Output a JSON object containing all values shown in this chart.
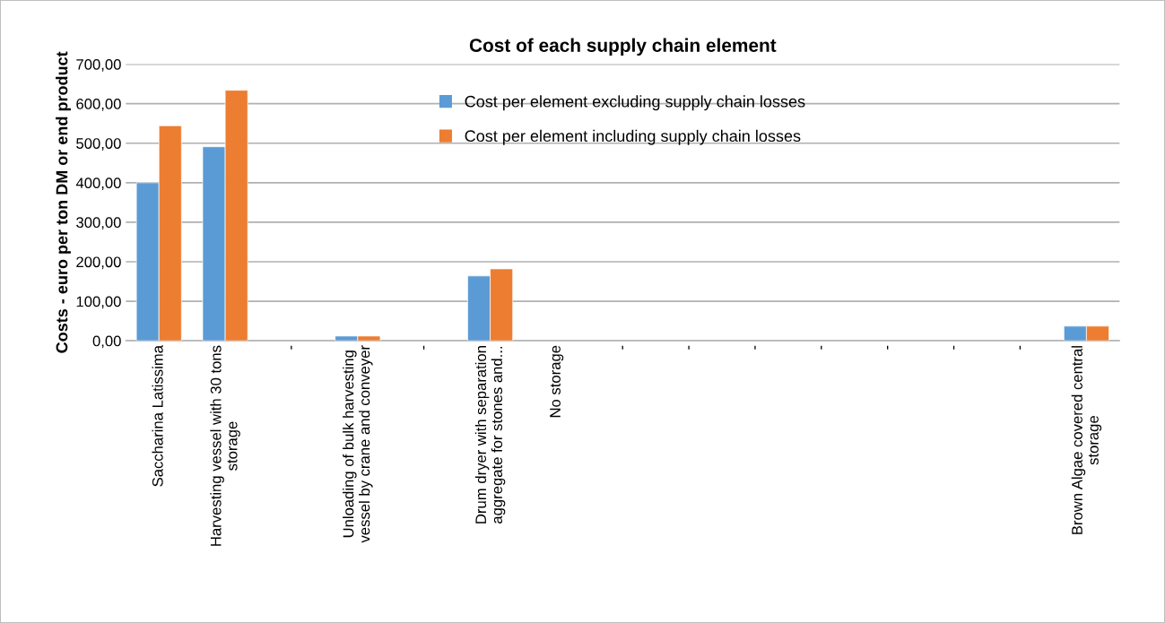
{
  "chart_data": {
    "type": "bar",
    "title": "Cost of each supply chain element",
    "ylabel": "Costs - euro per ton DM or end product",
    "categories": [
      "Saccharina Latissima",
      "Harvesting vessel with 30 tons storage",
      "-",
      "Unloading of bulk harvesting vessel by crane and conveyer",
      "-",
      "Drum dryer with separation aggregate for stones and...",
      "No storage",
      "-",
      "-",
      "-",
      "-",
      "-",
      "-",
      "-",
      "Brown Algae covered central storage"
    ],
    "series": [
      {
        "name": "Cost per element excluding supply chain losses",
        "color": "#5b9bd5",
        "values": [
          400,
          491,
          null,
          12,
          null,
          164,
          null,
          null,
          null,
          null,
          null,
          null,
          null,
          null,
          37
        ]
      },
      {
        "name": "Cost per element including supply chain losses",
        "color": "#ed7d31",
        "values": [
          544,
          634,
          null,
          12,
          null,
          182,
          null,
          null,
          null,
          null,
          null,
          null,
          null,
          null,
          37
        ]
      }
    ],
    "ylim": [
      0,
      700
    ],
    "yticks": [
      {
        "value": 0,
        "label": "0,00"
      },
      {
        "value": 100,
        "label": "100,00"
      },
      {
        "value": 200,
        "label": "200,00"
      },
      {
        "value": 300,
        "label": "300,00"
      },
      {
        "value": 400,
        "label": "400,00"
      },
      {
        "value": 500,
        "label": "500,00"
      },
      {
        "value": 600,
        "label": "600,00"
      },
      {
        "value": 700,
        "label": "700,00"
      }
    ],
    "grid": "y",
    "legend": "top"
  }
}
